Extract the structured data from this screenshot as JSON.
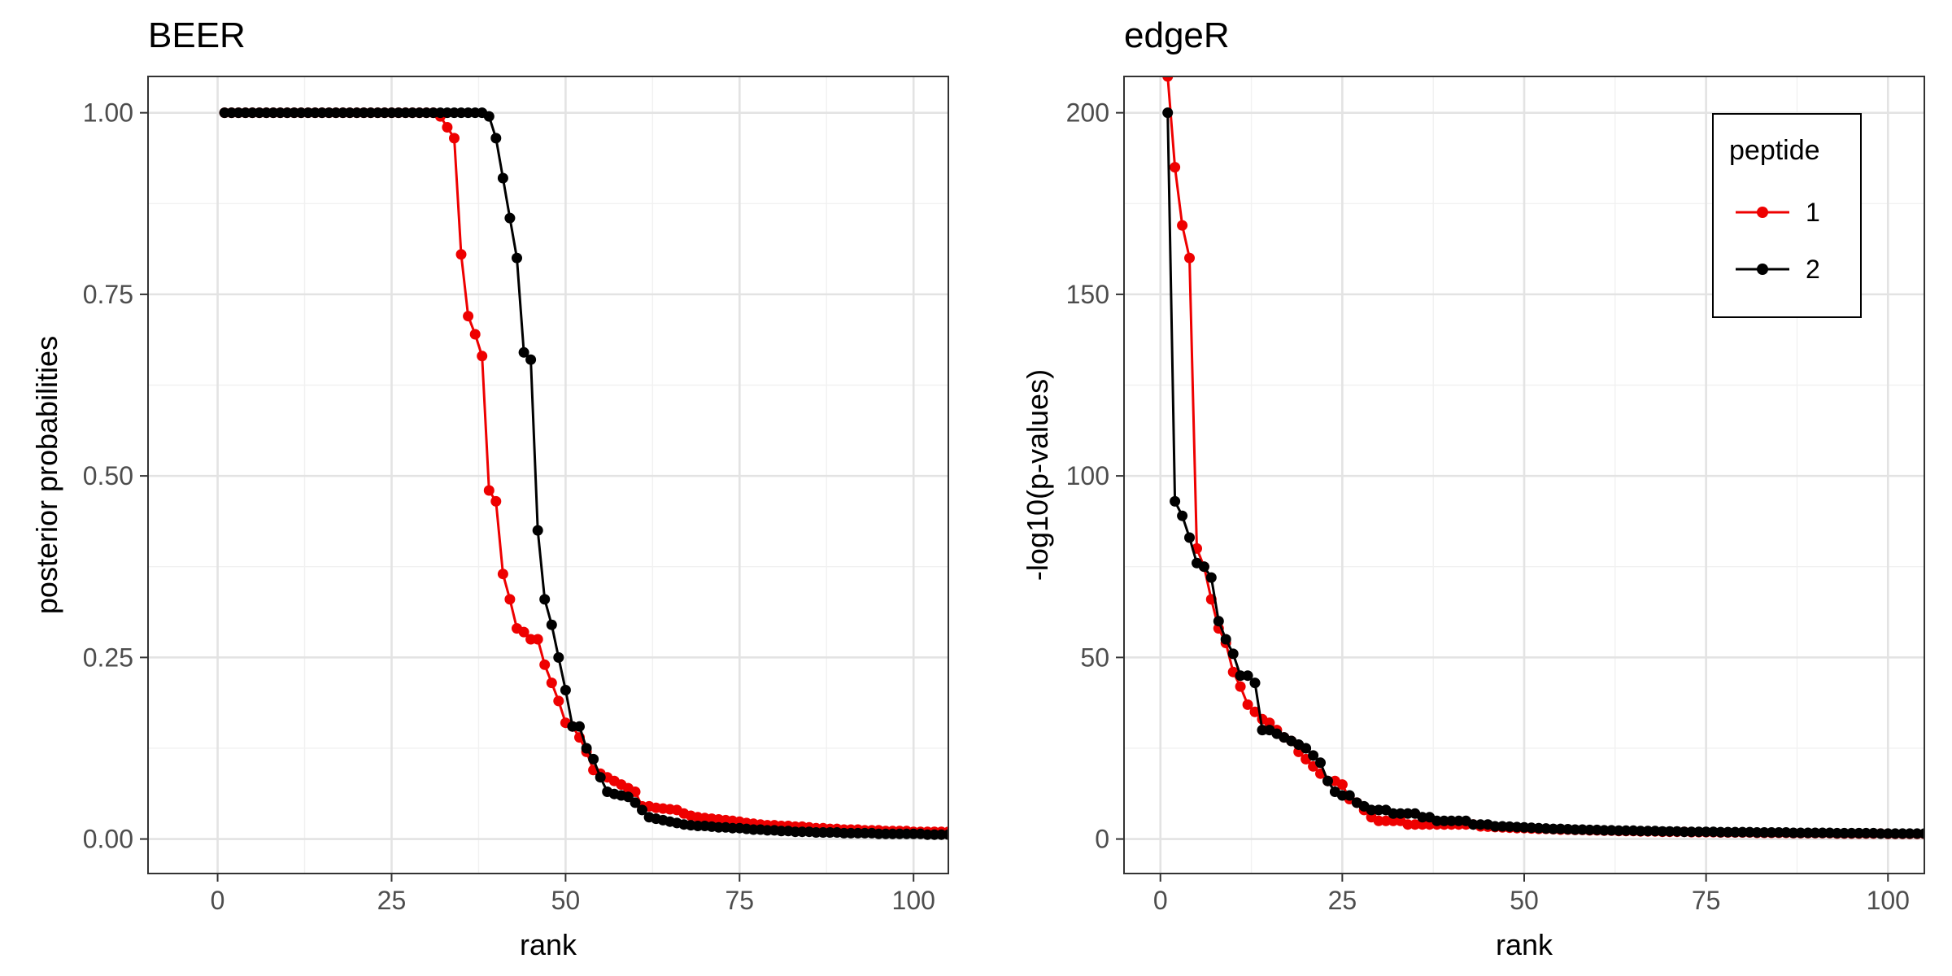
{
  "colors": {
    "peptide_1": "#ee0000",
    "peptide_2": "#000000"
  },
  "chart_data": [
    {
      "type": "line",
      "title": "BEER",
      "xlabel": "rank",
      "ylabel": "posterior probabilities",
      "xlim": [
        -10,
        105
      ],
      "ylim": [
        -0.0475,
        1.05
      ],
      "xticks": [
        0,
        25,
        50,
        75,
        100
      ],
      "xtick_labels": [
        "0",
        "25",
        "50",
        "75",
        "100"
      ],
      "yticks": [
        0,
        0.25,
        0.5,
        0.75,
        1.0
      ],
      "ytick_labels": [
        "0.00",
        "0.25",
        "0.50",
        "0.75",
        "1.00"
      ],
      "grid": true,
      "series": [
        {
          "name": "1",
          "color": "#ee0000",
          "x": [
            1,
            2,
            3,
            4,
            5,
            6,
            7,
            8,
            9,
            10,
            11,
            12,
            13,
            14,
            15,
            16,
            17,
            18,
            19,
            20,
            21,
            22,
            23,
            24,
            25,
            26,
            27,
            28,
            29,
            30,
            31,
            32,
            33,
            34,
            35,
            36,
            37,
            38,
            39,
            40,
            41,
            42,
            43,
            44,
            45,
            46,
            47,
            48,
            49,
            50,
            51,
            52,
            53,
            54,
            55,
            56,
            57,
            58,
            59,
            60,
            61,
            62,
            63,
            64,
            65,
            66,
            67,
            68,
            69,
            70,
            71,
            72,
            73,
            74,
            75,
            76,
            77,
            78,
            79,
            80,
            81,
            82,
            83,
            84,
            85,
            86,
            87,
            88,
            89,
            90,
            91,
            92,
            93,
            94,
            95,
            96,
            97,
            98,
            99,
            100,
            101,
            102,
            103,
            104,
            105
          ],
          "y": [
            1,
            1,
            1,
            1,
            1,
            1,
            1,
            1,
            1,
            1,
            1,
            1,
            1,
            1,
            1,
            1,
            1,
            1,
            1,
            1,
            1,
            1,
            1,
            1,
            1,
            1,
            1,
            1,
            1,
            1,
            1,
            0.995,
            0.98,
            0.965,
            0.805,
            0.72,
            0.695,
            0.665,
            0.48,
            0.465,
            0.365,
            0.33,
            0.29,
            0.285,
            0.275,
            0.275,
            0.24,
            0.215,
            0.19,
            0.16,
            0.155,
            0.14,
            0.12,
            0.095,
            0.09,
            0.085,
            0.08,
            0.075,
            0.07,
            0.065,
            0.045,
            0.045,
            0.043,
            0.042,
            0.041,
            0.04,
            0.035,
            0.032,
            0.03,
            0.029,
            0.028,
            0.027,
            0.026,
            0.025,
            0.024,
            0.022,
            0.021,
            0.02,
            0.019,
            0.019,
            0.018,
            0.018,
            0.017,
            0.017,
            0.016,
            0.015,
            0.015,
            0.014,
            0.014,
            0.013,
            0.013,
            0.013,
            0.012,
            0.012,
            0.012,
            0.011,
            0.011,
            0.011,
            0.011,
            0.01,
            0.01,
            0.01,
            0.01,
            0.01,
            0.01
          ]
        },
        {
          "name": "2",
          "color": "#000000",
          "x": [
            1,
            2,
            3,
            4,
            5,
            6,
            7,
            8,
            9,
            10,
            11,
            12,
            13,
            14,
            15,
            16,
            17,
            18,
            19,
            20,
            21,
            22,
            23,
            24,
            25,
            26,
            27,
            28,
            29,
            30,
            31,
            32,
            33,
            34,
            35,
            36,
            37,
            38,
            39,
            40,
            41,
            42,
            43,
            44,
            45,
            46,
            47,
            48,
            49,
            50,
            51,
            52,
            53,
            54,
            55,
            56,
            57,
            58,
            59,
            60,
            61,
            62,
            63,
            64,
            65,
            66,
            67,
            68,
            69,
            70,
            71,
            72,
            73,
            74,
            75,
            76,
            77,
            78,
            79,
            80,
            81,
            82,
            83,
            84,
            85,
            86,
            87,
            88,
            89,
            90,
            91,
            92,
            93,
            94,
            95,
            96,
            97,
            98,
            99,
            100,
            101,
            102,
            103,
            104,
            105
          ],
          "y": [
            1,
            1,
            1,
            1,
            1,
            1,
            1,
            1,
            1,
            1,
            1,
            1,
            1,
            1,
            1,
            1,
            1,
            1,
            1,
            1,
            1,
            1,
            1,
            1,
            1,
            1,
            1,
            1,
            1,
            1,
            1,
            1,
            1,
            1,
            1,
            1,
            1,
            1,
            0.995,
            0.965,
            0.91,
            0.855,
            0.8,
            0.67,
            0.66,
            0.425,
            0.33,
            0.295,
            0.25,
            0.205,
            0.155,
            0.155,
            0.125,
            0.11,
            0.085,
            0.065,
            0.062,
            0.06,
            0.058,
            0.05,
            0.04,
            0.03,
            0.028,
            0.026,
            0.024,
            0.022,
            0.02,
            0.019,
            0.018,
            0.018,
            0.017,
            0.016,
            0.016,
            0.015,
            0.015,
            0.014,
            0.013,
            0.013,
            0.012,
            0.012,
            0.011,
            0.011,
            0.01,
            0.01,
            0.01,
            0.009,
            0.009,
            0.009,
            0.009,
            0.008,
            0.008,
            0.008,
            0.008,
            0.008,
            0.007,
            0.007,
            0.007,
            0.007,
            0.007,
            0.007,
            0.007,
            0.006,
            0.006,
            0.006,
            0.006
          ]
        }
      ]
    },
    {
      "type": "line",
      "title": "edgeR",
      "xlabel": "rank",
      "ylabel": "-log10(p-values)",
      "xlim": [
        -5,
        105
      ],
      "ylim": [
        -9.5,
        210
      ],
      "xticks": [
        0,
        25,
        50,
        75,
        100
      ],
      "xtick_labels": [
        "0",
        "25",
        "50",
        "75",
        "100"
      ],
      "yticks": [
        0,
        50,
        100,
        150,
        200
      ],
      "ytick_labels": [
        "0",
        "50",
        "100",
        "150",
        "200"
      ],
      "grid": true,
      "legend": {
        "title": "peptide",
        "position": "top-right",
        "entries": [
          "1",
          "2"
        ]
      },
      "series": [
        {
          "name": "1",
          "color": "#ee0000",
          "x": [
            1,
            2,
            3,
            4,
            5,
            6,
            7,
            8,
            9,
            10,
            11,
            12,
            13,
            14,
            15,
            16,
            17,
            18,
            19,
            20,
            21,
            22,
            23,
            24,
            25,
            26,
            27,
            28,
            29,
            30,
            31,
            32,
            33,
            34,
            35,
            36,
            37,
            38,
            39,
            40,
            41,
            42,
            43,
            44,
            45,
            46,
            47,
            48,
            49,
            50,
            51,
            52,
            53,
            54,
            55,
            56,
            57,
            58,
            59,
            60,
            61,
            62,
            63,
            64,
            65,
            66,
            67,
            68,
            69,
            70,
            71,
            72,
            73,
            74,
            75,
            76,
            77,
            78,
            79,
            80,
            81,
            82,
            83,
            84,
            85,
            86,
            87,
            88,
            89,
            90,
            91,
            92,
            93,
            94,
            95,
            96,
            97,
            98,
            99,
            100,
            101,
            102,
            103,
            104,
            105
          ],
          "y": [
            210,
            185,
            169,
            160,
            80,
            75,
            66,
            58,
            54,
            46,
            42,
            37,
            35,
            33,
            32,
            30,
            28,
            27,
            24,
            22,
            20,
            18,
            16,
            16,
            15,
            11,
            10,
            8,
            6,
            5,
            5,
            5,
            5,
            4,
            4,
            4,
            4,
            4,
            4,
            4,
            4,
            4,
            4,
            3.5,
            3.4,
            3.3,
            3.2,
            3.1,
            3,
            3,
            2.9,
            2.8,
            2.8,
            2.7,
            2.6,
            2.6,
            2.5,
            2.5,
            2.4,
            2.4,
            2.3,
            2.3,
            2.2,
            2.2,
            2.2,
            2.1,
            2.1,
            2.1,
            2,
            2,
            2,
            2,
            1.9,
            1.9,
            1.9,
            1.9,
            1.8,
            1.8,
            1.8,
            1.8,
            1.8,
            1.7,
            1.7,
            1.7,
            1.7,
            1.7,
            1.6,
            1.6,
            1.6,
            1.6,
            1.6,
            1.6,
            1.5,
            1.5,
            1.5,
            1.5,
            1.5,
            1.5,
            1.5,
            1.4,
            1.4,
            1.4,
            1.4,
            1.4,
            1.4
          ]
        },
        {
          "name": "2",
          "color": "#000000",
          "x": [
            1,
            2,
            3,
            4,
            5,
            6,
            7,
            8,
            9,
            10,
            11,
            12,
            13,
            14,
            15,
            16,
            17,
            18,
            19,
            20,
            21,
            22,
            23,
            24,
            25,
            26,
            27,
            28,
            29,
            30,
            31,
            32,
            33,
            34,
            35,
            36,
            37,
            38,
            39,
            40,
            41,
            42,
            43,
            44,
            45,
            46,
            47,
            48,
            49,
            50,
            51,
            52,
            53,
            54,
            55,
            56,
            57,
            58,
            59,
            60,
            61,
            62,
            63,
            64,
            65,
            66,
            67,
            68,
            69,
            70,
            71,
            72,
            73,
            74,
            75,
            76,
            77,
            78,
            79,
            80,
            81,
            82,
            83,
            84,
            85,
            86,
            87,
            88,
            89,
            90,
            91,
            92,
            93,
            94,
            95,
            96,
            97,
            98,
            99,
            100,
            101,
            102,
            103,
            104,
            105
          ],
          "y": [
            200,
            93,
            89,
            83,
            76,
            75,
            72,
            60,
            55,
            51,
            45,
            45,
            43,
            30,
            30,
            29,
            28,
            27,
            26,
            25,
            23,
            21,
            16,
            13,
            12,
            12,
            10,
            9,
            8,
            8,
            8,
            7,
            7,
            7,
            7,
            6,
            6,
            5,
            5,
            5,
            5,
            5,
            4,
            4,
            4,
            3.5,
            3.5,
            3.4,
            3.3,
            3.2,
            3.1,
            3,
            2.9,
            2.8,
            2.8,
            2.7,
            2.6,
            2.6,
            2.5,
            2.5,
            2.4,
            2.4,
            2.3,
            2.3,
            2.3,
            2.2,
            2.2,
            2.2,
            2.1,
            2.1,
            2.1,
            2,
            2,
            2,
            2,
            2,
            1.9,
            1.9,
            1.9,
            1.9,
            1.9,
            1.8,
            1.8,
            1.8,
            1.8,
            1.8,
            1.7,
            1.7,
            1.7,
            1.7,
            1.7,
            1.7,
            1.6,
            1.6,
            1.6,
            1.6,
            1.6,
            1.6,
            1.5,
            1.5,
            1.5,
            1.5,
            1.5,
            1.5,
            1.5
          ]
        }
      ]
    }
  ]
}
